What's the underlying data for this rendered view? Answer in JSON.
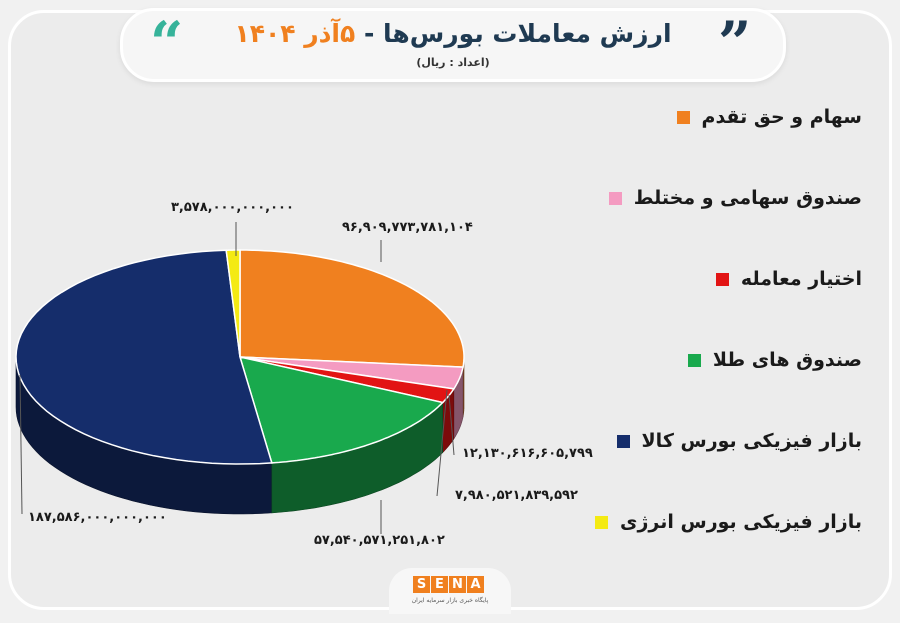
{
  "header": {
    "title_text": "ارزش معاملات بورس‌ها - ",
    "title_date": "۵آذر ۱۴۰۴",
    "subtitle": "(اعداد : ریال)"
  },
  "colors": {
    "orange": "#f0801f",
    "pink": "#f49bc1",
    "red": "#e21414",
    "green": "#19a94d",
    "navy": "#152d6b",
    "yellow": "#f4ea13"
  },
  "chart_data": {
    "type": "pie",
    "title": "ارزش معاملات بورس‌ها - ۵آذر ۱۴۰۴",
    "unit": "ریال",
    "legend_position": "right",
    "slices": [
      {
        "name": "سهام و حق تقدم",
        "value": 96909773781104,
        "label": "۹۶,۹۰۹,۷۷۳,۷۸۱,۱۰۴",
        "color": "#f0801f"
      },
      {
        "name": "صندوق سهامی و مختلط",
        "value": 12130616605799,
        "label": "۱۲,۱۳۰,۶۱۶,۶۰۵,۷۹۹",
        "color": "#f49bc1"
      },
      {
        "name": "اختیار معامله",
        "value": 7980521839592,
        "label": "۷,۹۸۰,۵۲۱,۸۳۹,۵۹۲",
        "color": "#e21414"
      },
      {
        "name": "صندوق های طلا",
        "value": 57540571251802,
        "label": "۵۷,۵۴۰,۵۷۱,۲۵۱,۸۰۲",
        "color": "#19a94d"
      },
      {
        "name": "بازار فیزیکی بورس کالا",
        "value": 187586000000000,
        "label": "۱۸۷,۵۸۶,۰۰۰,۰۰۰,۰۰۰",
        "color": "#152d6b"
      },
      {
        "name": "بازار فیزیکی بورس انرژی",
        "value": 3578000000000,
        "label": "۳,۵۷۸,۰۰۰,۰۰۰,۰۰۰",
        "color": "#f4ea13"
      }
    ]
  },
  "footer": {
    "logo_letters": [
      "S",
      "E",
      "N",
      "A"
    ],
    "logo_tagline": "پایگاه خبری بازار سرمایه ایران"
  }
}
